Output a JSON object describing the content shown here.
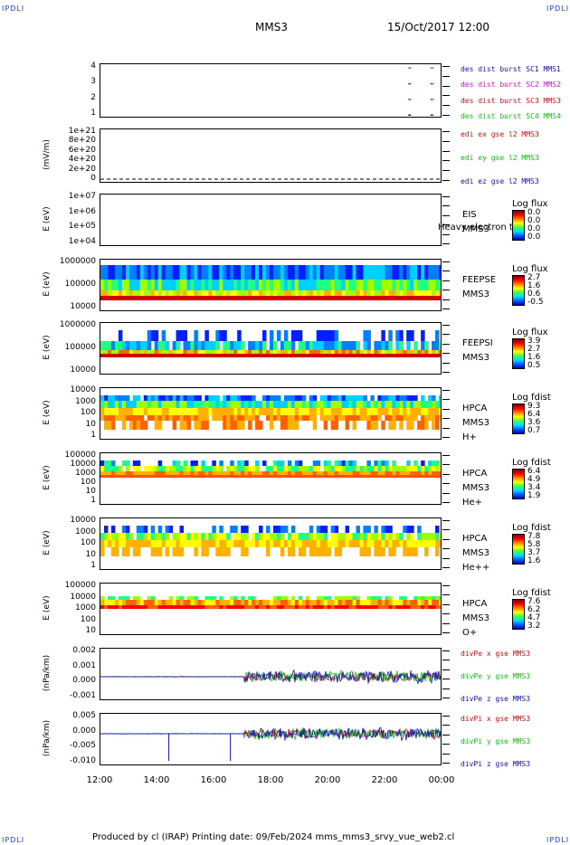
{
  "corners": {
    "tl": "IPDLI",
    "tr": "IPDLI",
    "bl": "IPDLI",
    "br": "IPDLI"
  },
  "header": {
    "title": "MMS3",
    "date": "15/Oct/2017 12:00"
  },
  "footer": {
    "text": "Produced by cl (IRAP)   Printing date: 09/Feb/2024   mms_mms3_srvy_vue_web2.cl"
  },
  "colors": {
    "mms1": "#1010c0",
    "mms2": "#d010d0",
    "mms3": "#d01010",
    "mms4": "#10c010",
    "dashed": "#000000"
  },
  "chart_data": {
    "type": "multi-panel",
    "x_axis": {
      "ticks": [
        "12:00",
        "14:00",
        "16:00",
        "18:00",
        "20:00",
        "22:00",
        "00:00"
      ],
      "range": [
        "12:00",
        "00:00"
      ]
    },
    "panels": [
      {
        "id": "p1",
        "type": "scatter",
        "ylabel": "",
        "yticks": [
          "4",
          "3",
          "2",
          "1"
        ],
        "legend": [
          {
            "text": "des dist burst SC1 MMS1",
            "color": "#1010c0"
          },
          {
            "text": "des dist burst SC2 MMS2",
            "color": "#d010d0"
          },
          {
            "text": "des dist burst SC3 MMS3",
            "color": "#d01010"
          },
          {
            "text": "des dist burst SC4 MMS4",
            "color": "#10c010"
          }
        ]
      },
      {
        "id": "p2",
        "type": "line",
        "ylabel": "(mV/m)",
        "yticks": [
          "1e+21",
          "8e+20",
          "6e+20",
          "4e+20",
          "2e+20",
          "0"
        ],
        "legend": [
          {
            "text": "edi ex gse l2 MMS3",
            "color": "#d01010"
          },
          {
            "text": "edi ey gse l2 MMS3",
            "color": "#10c010"
          },
          {
            "text": "edi ez gse l2 MMS3",
            "color": "#1010c0"
          }
        ]
      },
      {
        "id": "p3",
        "type": "heatmap",
        "ylabel": "E (eV)",
        "yticks": [
          "1e+07",
          "1e+06",
          "1e+05",
          "1e+04"
        ],
        "instrument": [
          "EIS",
          "MMS3"
        ],
        "overlay": "Heavy electron to",
        "cbar_title": "Log flux",
        "cbar_vals": [
          "0.0",
          "0.0",
          "0.0",
          "0.0"
        ]
      },
      {
        "id": "p4",
        "type": "heatmap",
        "ylabel": "E (eV)",
        "yticks": [
          "1000000",
          "100000",
          "10000"
        ],
        "instrument": [
          "FEEPSE",
          "MMS3"
        ],
        "cbar_title": "Log flux",
        "cbar_vals": [
          "2.7",
          "1.6",
          "0.6",
          "-0.5"
        ]
      },
      {
        "id": "p5",
        "type": "heatmap",
        "ylabel": "E (eV)",
        "yticks": [
          "1000000",
          "100000",
          "10000"
        ],
        "instrument": [
          "FEEPSI",
          "MMS3"
        ],
        "cbar_title": "Log flux",
        "cbar_vals": [
          "3.9",
          "2.7",
          "1.6",
          "0.5"
        ]
      },
      {
        "id": "p6",
        "type": "heatmap",
        "ylabel": "E (eV)",
        "yticks": [
          "10000",
          "1000",
          "100",
          "10",
          "1"
        ],
        "instrument": [
          "HPCA",
          "MMS3",
          "H+"
        ],
        "cbar_title": "Log fdist",
        "cbar_vals": [
          "9.3",
          "6.4",
          "3.6",
          "0.7"
        ]
      },
      {
        "id": "p7",
        "type": "heatmap",
        "ylabel": "E (eV)",
        "yticks": [
          "100000",
          "10000",
          "1000",
          "100",
          "10",
          "1"
        ],
        "instrument": [
          "HPCA",
          "MMS3",
          "He+"
        ],
        "cbar_title": "Log fdist",
        "cbar_vals": [
          "6.4",
          "4.9",
          "3.4",
          "1.9"
        ]
      },
      {
        "id": "p8",
        "type": "heatmap",
        "ylabel": "E (eV)",
        "yticks": [
          "10000",
          "1000",
          "100",
          "10",
          "1"
        ],
        "instrument": [
          "HPCA",
          "MMS3",
          "He++"
        ],
        "cbar_title": "Log fdist",
        "cbar_vals": [
          "7.8",
          "5.8",
          "3.7",
          "1.6"
        ]
      },
      {
        "id": "p9",
        "type": "heatmap",
        "ylabel": "E (eV)",
        "yticks": [
          "100000",
          "10000",
          "1000",
          "100",
          "10"
        ],
        "instrument": [
          "HPCA",
          "MMS3",
          "O+"
        ],
        "cbar_title": "Log fdist",
        "cbar_vals": [
          "7.6",
          "6.2",
          "4.7",
          "3.2"
        ]
      },
      {
        "id": "p10",
        "type": "line",
        "ylabel": "(nPa/km)",
        "yticks": [
          "0.002",
          "0.001",
          "0.000",
          "-0.001"
        ],
        "legend": [
          {
            "text": "divPe x gse MMS3",
            "color": "#d01010"
          },
          {
            "text": "divPe y gse MMS3",
            "color": "#10c010"
          },
          {
            "text": "divPe z gse MMS3",
            "color": "#1010c0"
          }
        ]
      },
      {
        "id": "p11",
        "type": "line",
        "ylabel": "(nPa/km)",
        "yticks": [
          "0.005",
          "0.000",
          "-0.005",
          "-0.010"
        ],
        "legend": [
          {
            "text": "divPi x gse MMS3",
            "color": "#d01010"
          },
          {
            "text": "divPi y gse MMS3",
            "color": "#10c010"
          },
          {
            "text": "divPi z gse MMS3",
            "color": "#1010c0"
          }
        ]
      }
    ]
  }
}
